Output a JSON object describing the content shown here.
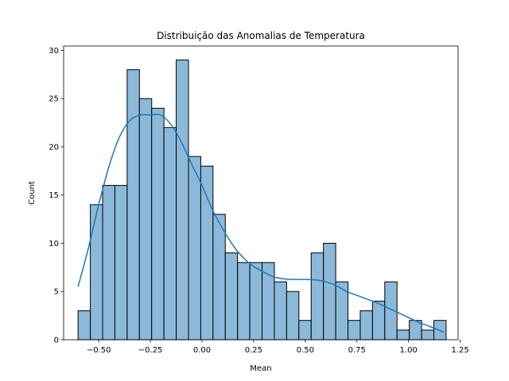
{
  "chart_data": {
    "type": "bar",
    "subtype": "histogram_with_kde",
    "title": "Distribuição das Anomalias de Temperatura",
    "xlabel": "Mean",
    "ylabel": "Count",
    "xlim": [
      -0.67,
      1.24
    ],
    "ylim": [
      0,
      30.45
    ],
    "x_ticks": [
      -0.5,
      -0.25,
      0.0,
      0.25,
      0.5,
      0.75,
      1.0,
      1.25
    ],
    "x_tick_labels": [
      "−0.50",
      "−0.25",
      "0.00",
      "0.25",
      "0.50",
      "0.75",
      "1.00",
      "1.25"
    ],
    "y_ticks": [
      0,
      5,
      10,
      15,
      20,
      25,
      30
    ],
    "y_tick_labels": [
      "0",
      "5",
      "10",
      "15",
      "20",
      "25",
      "30"
    ],
    "grid": false,
    "bin_width": 0.0594,
    "bin_starts": [
      -0.6,
      -0.5406,
      -0.4812,
      -0.4218,
      -0.3624,
      -0.303,
      -0.2436,
      -0.1842,
      -0.1248,
      -0.0654,
      -0.006,
      0.0534,
      0.1128,
      0.1722,
      0.2316,
      0.291,
      0.3504,
      0.4098,
      0.4692,
      0.5286,
      0.588,
      0.6474,
      0.7068,
      0.7662,
      0.8256,
      0.885,
      0.9444,
      1.0038,
      1.0632,
      1.1226
    ],
    "values": [
      3,
      14,
      16,
      16,
      28,
      25,
      24,
      22,
      29,
      19,
      18,
      13,
      9,
      8,
      8,
      8,
      6,
      5,
      2,
      9,
      10,
      6,
      2,
      3,
      4,
      6,
      1,
      2,
      1,
      2
    ],
    "kde": {
      "x": [
        -0.6,
        -0.55,
        -0.5,
        -0.45,
        -0.4,
        -0.35,
        -0.3,
        -0.25,
        -0.2,
        -0.15,
        -0.1,
        -0.05,
        0.0,
        0.05,
        0.1,
        0.15,
        0.2,
        0.25,
        0.3,
        0.35,
        0.4,
        0.45,
        0.5,
        0.55,
        0.6,
        0.65,
        0.7,
        0.75,
        0.8,
        0.85,
        0.9,
        0.95,
        1.0,
        1.05,
        1.1,
        1.17
      ],
      "y": [
        5.5,
        9.5,
        14.0,
        18.0,
        21.0,
        22.7,
        23.3,
        23.3,
        23.3,
        22.3,
        20.5,
        18.2,
        16.0,
        13.5,
        11.5,
        9.8,
        8.5,
        7.6,
        7.0,
        6.5,
        6.3,
        6.25,
        6.25,
        6.2,
        6.0,
        5.6,
        5.0,
        4.6,
        4.2,
        3.8,
        3.3,
        2.8,
        2.3,
        1.8,
        1.4,
        0.8
      ]
    },
    "colors": {
      "bar_fill": "#8cb9d9",
      "bar_edge": "#000000",
      "kde_line": "#1f77b4",
      "axes": "#000000",
      "background": "#ffffff"
    }
  }
}
